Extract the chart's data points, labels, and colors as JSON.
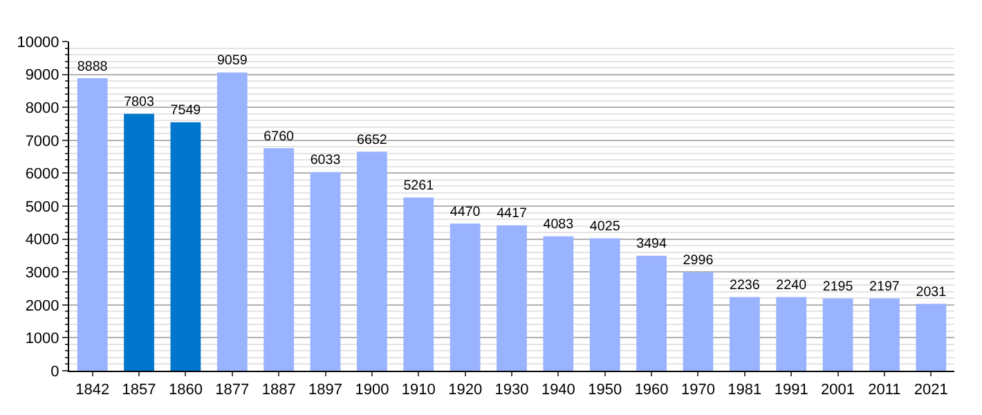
{
  "chart_data": {
    "type": "bar",
    "categories": [
      "1842",
      "1857",
      "1860",
      "1877",
      "1887",
      "1897",
      "1900",
      "1910",
      "1920",
      "1930",
      "1940",
      "1950",
      "1960",
      "1970",
      "1981",
      "1991",
      "2001",
      "2011",
      "2021"
    ],
    "values": [
      8888,
      7803,
      7549,
      9059,
      6760,
      6033,
      6652,
      5261,
      4470,
      4417,
      4083,
      4025,
      3494,
      2996,
      2236,
      2240,
      2195,
      2197,
      2031
    ],
    "colors": [
      "#99b3ff",
      "#0077cc",
      "#0077cc",
      "#99b3ff",
      "#99b3ff",
      "#99b3ff",
      "#99b3ff",
      "#99b3ff",
      "#99b3ff",
      "#99b3ff",
      "#99b3ff",
      "#99b3ff",
      "#99b3ff",
      "#99b3ff",
      "#99b3ff",
      "#99b3ff",
      "#99b3ff",
      "#99b3ff",
      "#99b3ff"
    ],
    "ylim": [
      0,
      10000
    ],
    "yticks": [
      0,
      1000,
      2000,
      3000,
      4000,
      5000,
      6000,
      7000,
      8000,
      9000,
      10000
    ],
    "grid": "y",
    "data_labels": true
  }
}
